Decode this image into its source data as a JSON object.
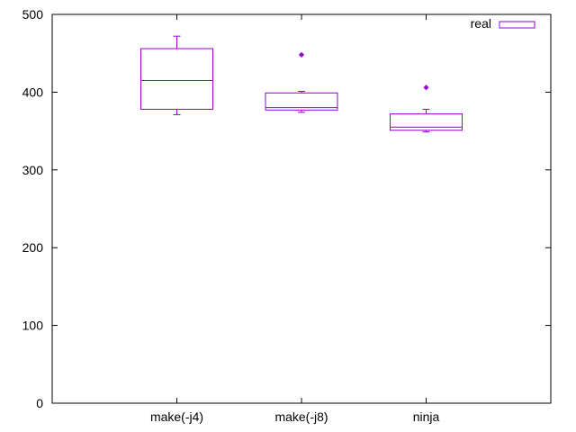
{
  "chart_data": {
    "type": "box",
    "categories": [
      "make(-j4)",
      "make(-j8)",
      "ninja"
    ],
    "series": [
      {
        "name": "real",
        "boxes": [
          {
            "whisker_low": 371,
            "q1": 378,
            "median": 415,
            "q3": 456,
            "whisker_high": 472,
            "outliers": []
          },
          {
            "whisker_low": 374,
            "q1": 377,
            "median": 380,
            "q3": 399,
            "whisker_high": 401,
            "outliers": [
              448
            ]
          },
          {
            "whisker_low": 349,
            "q1": 351,
            "median": 355,
            "q3": 372,
            "whisker_high": 378,
            "outliers": [
              406
            ]
          }
        ]
      }
    ],
    "yticks": [
      "0",
      "100",
      "200",
      "300",
      "400",
      "500"
    ],
    "ylim": [
      0,
      500
    ],
    "legend_position": "top-right",
    "grid": false,
    "series_color": "#9400d3"
  }
}
